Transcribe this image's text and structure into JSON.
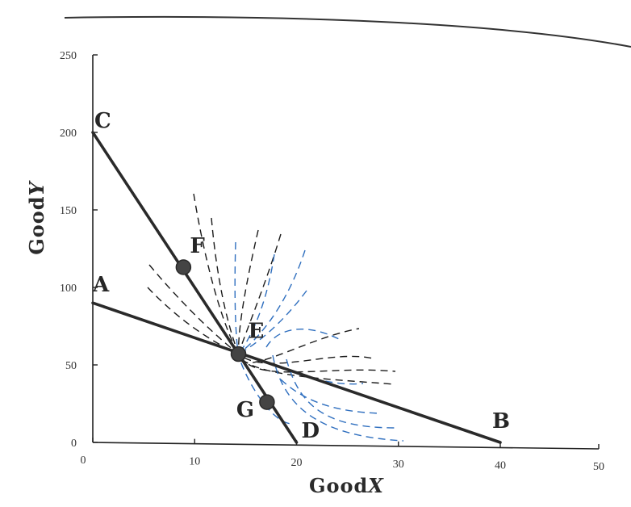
{
  "chart_data": {
    "type": "line",
    "xlabel_prefix": "Good",
    "xlabel_var": "X",
    "ylabel_prefix": "Good",
    "ylabel_var": "Y",
    "xlim": [
      0,
      50
    ],
    "ylim": [
      0,
      250
    ],
    "xticks": [
      "0",
      "10",
      "20",
      "30",
      "40",
      "50"
    ],
    "yticks": [
      "0",
      "50",
      "100",
      "150",
      "200",
      "250"
    ],
    "grid": false,
    "lines": [
      {
        "from": "A",
        "to": "B",
        "points": [
          [
            0,
            90
          ],
          [
            40,
            0
          ]
        ]
      },
      {
        "from": "C",
        "to": "D",
        "points": [
          [
            0,
            200
          ],
          [
            20,
            0
          ]
        ]
      }
    ],
    "points": [
      {
        "label": "A",
        "x": 0,
        "y": 90,
        "marker": false
      },
      {
        "label": "B",
        "x": 40,
        "y": 0,
        "marker": false
      },
      {
        "label": "C",
        "x": 0,
        "y": 200,
        "marker": false
      },
      {
        "label": "D",
        "x": 20,
        "y": 0,
        "marker": false
      },
      {
        "label": "E",
        "x": 14.3,
        "y": 57,
        "marker": true
      },
      {
        "label": "F",
        "x": 8.9,
        "y": 113,
        "marker": true
      },
      {
        "label": "G",
        "x": 17.1,
        "y": 26,
        "marker": true
      }
    ],
    "annotations": {
      "black_dashed_color": "#1a1a1a",
      "blue_dashed_color": "#2f6fbf"
    }
  }
}
